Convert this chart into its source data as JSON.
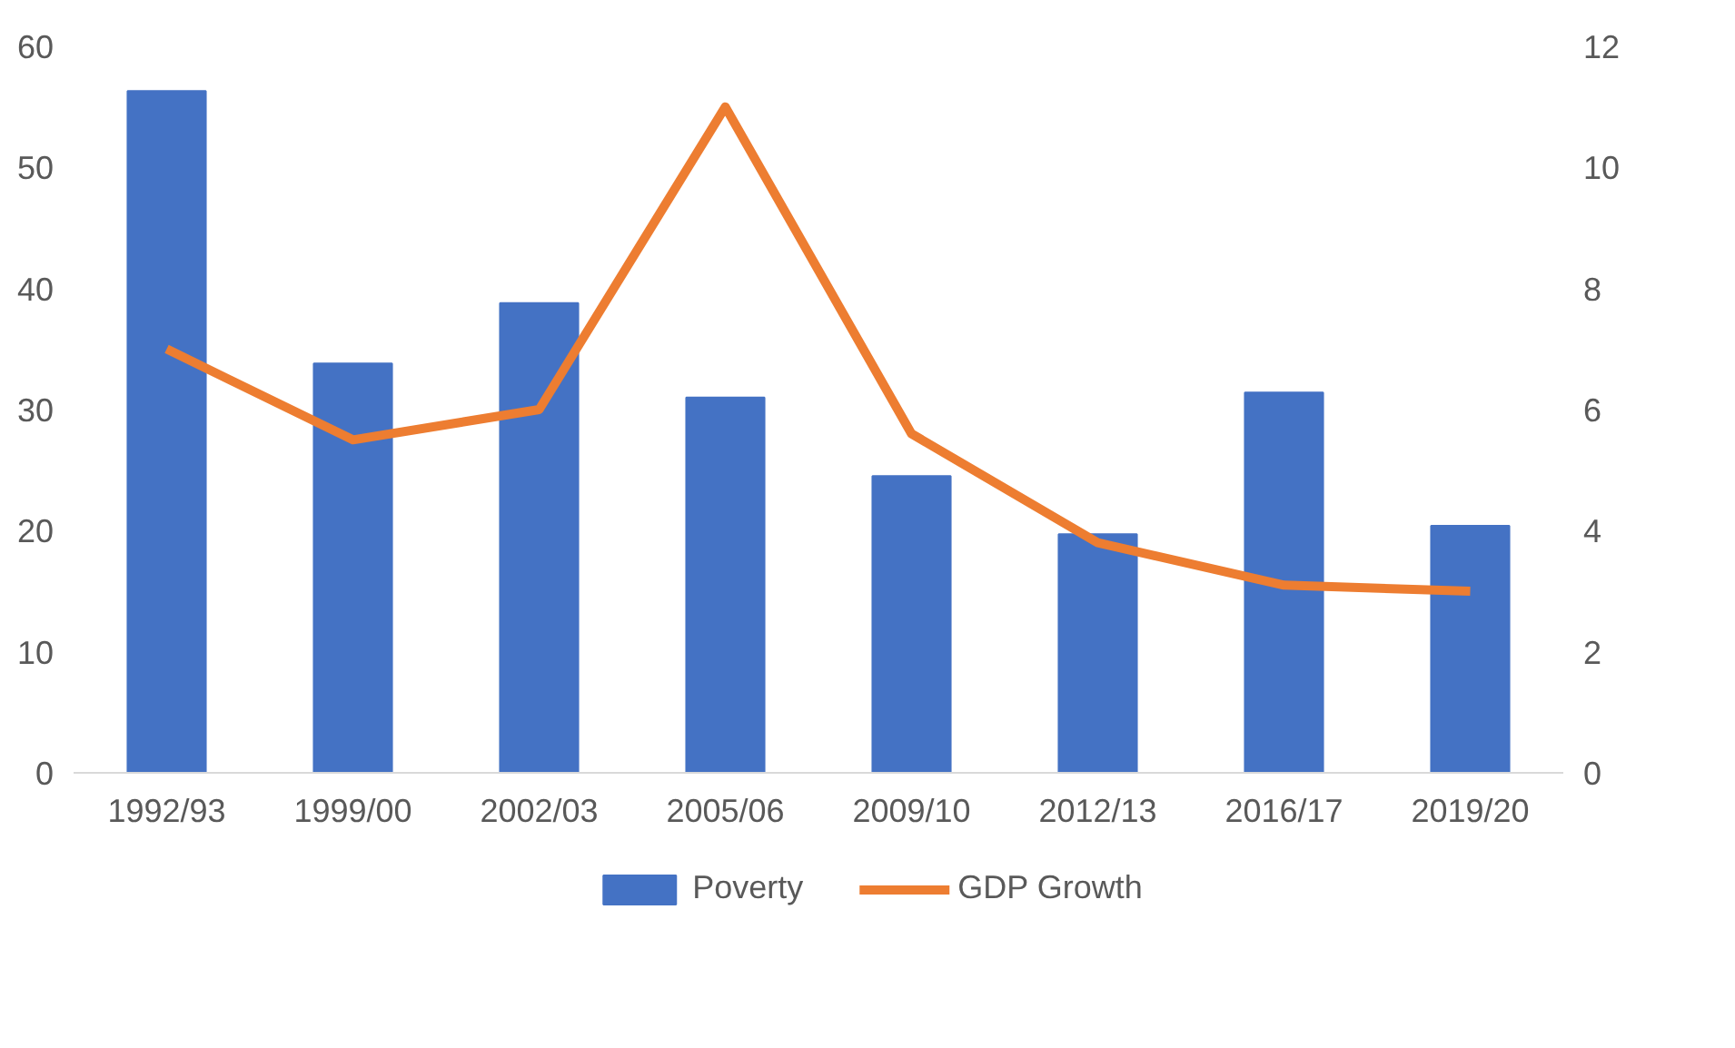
{
  "chart_data": {
    "type": "bar",
    "categories": [
      "1992/93",
      "1999/00",
      "2002/03",
      "2005/06",
      "2009/10",
      "2012/13",
      "2016/17",
      "2019/20"
    ],
    "series": [
      {
        "name": "Poverty",
        "color": "#4472c4",
        "values": [
          56.3,
          33.8,
          38.8,
          31.0,
          24.5,
          19.7,
          31.4,
          20.4
        ]
      },
      {
        "name": "GDP Growth",
        "type": "line",
        "axis": "y2",
        "color": "#ed7d31",
        "values": [
          7.0,
          5.5,
          6.0,
          11.0,
          5.6,
          3.8,
          3.1,
          3.0
        ]
      }
    ],
    "ylim": [
      0,
      60
    ],
    "yticks": [
      0,
      10,
      20,
      30,
      40,
      50,
      60
    ],
    "y2lim": [
      0,
      12
    ],
    "y2ticks": [
      0,
      2,
      4,
      6,
      8,
      10,
      12
    ],
    "grid": false,
    "legend": "bottom",
    "marker": "none",
    "line_style": "solid"
  }
}
